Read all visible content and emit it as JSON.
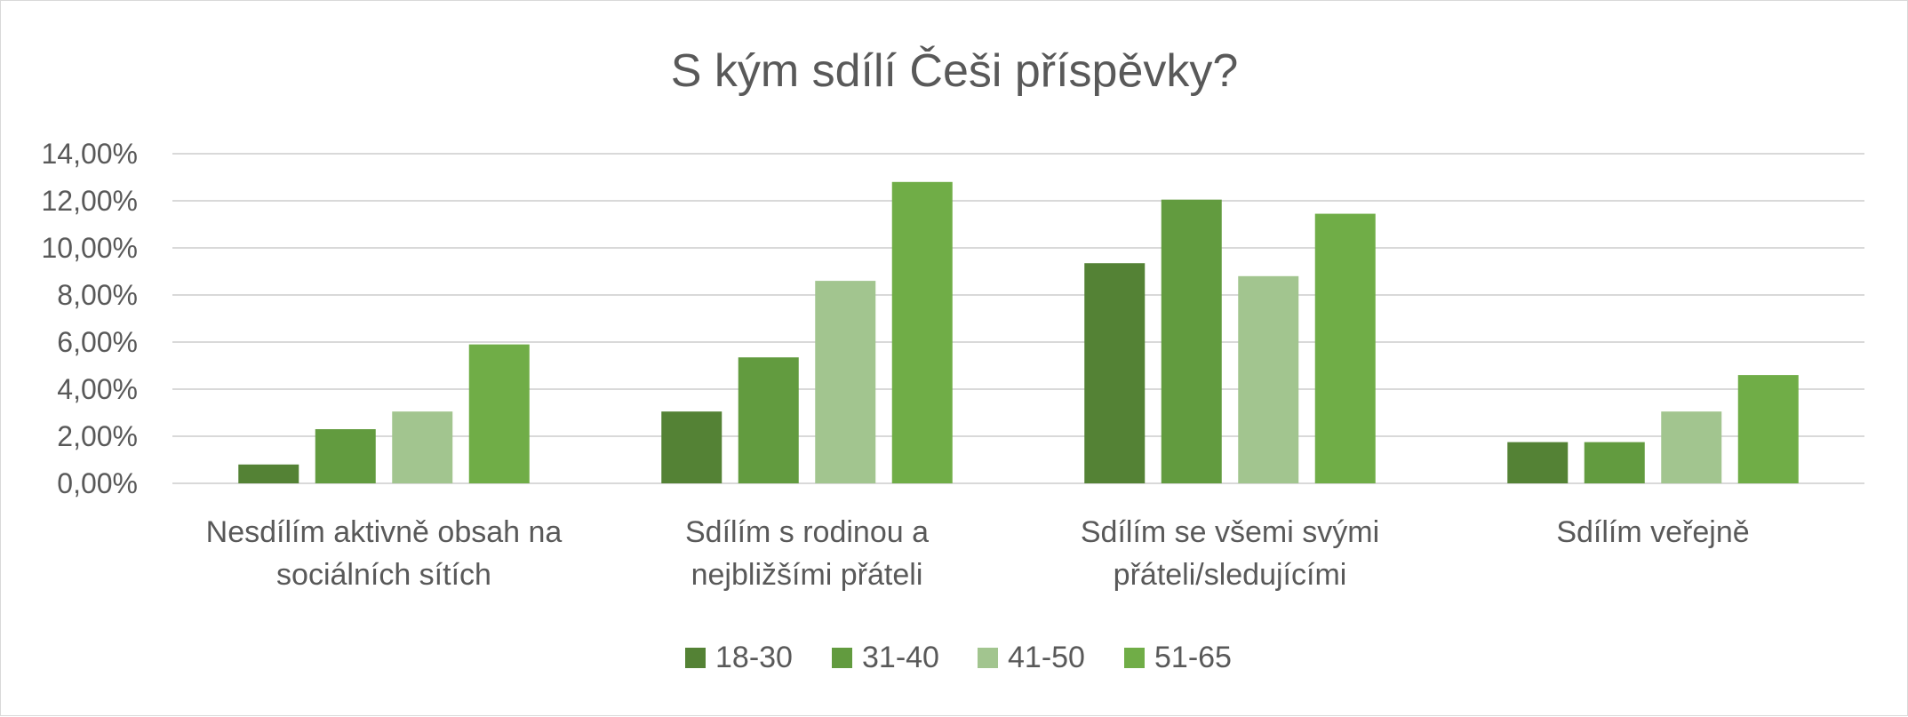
{
  "chart_data": {
    "type": "bar",
    "title": "S kým sdílí Češi příspěvky?",
    "xlabel": "",
    "ylabel": "",
    "ylim": [
      0,
      14
    ],
    "yticks": [
      0,
      2,
      4,
      6,
      8,
      10,
      12,
      14
    ],
    "ytick_labels": [
      "0,00%",
      "2,00%",
      "4,00%",
      "6,00%",
      "8,00%",
      "10,00%",
      "12,00%",
      "14,00%"
    ],
    "categories": [
      [
        "Nesdílím aktivně obsah na",
        "sociálních sítích"
      ],
      [
        "Sdílím s rodinou a",
        "nejbližšími přáteli"
      ],
      [
        "Sdílím se všemi svými",
        "přáteli/sledujícími"
      ],
      [
        "Sdílím veřejně"
      ]
    ],
    "series": [
      {
        "name": "18-30",
        "color": "#548235",
        "values": [
          0.8,
          3.05,
          9.35,
          1.75
        ]
      },
      {
        "name": "31-40",
        "color": "#629b3f",
        "values": [
          2.3,
          5.35,
          12.05,
          1.75
        ]
      },
      {
        "name": "41-50",
        "color": "#a2c58f",
        "values": [
          3.05,
          8.6,
          8.8,
          3.05
        ]
      },
      {
        "name": "51-65",
        "color": "#70ad47",
        "values": [
          5.9,
          12.8,
          11.45,
          4.6
        ]
      }
    ],
    "grid": true,
    "legend_position": "bottom"
  }
}
